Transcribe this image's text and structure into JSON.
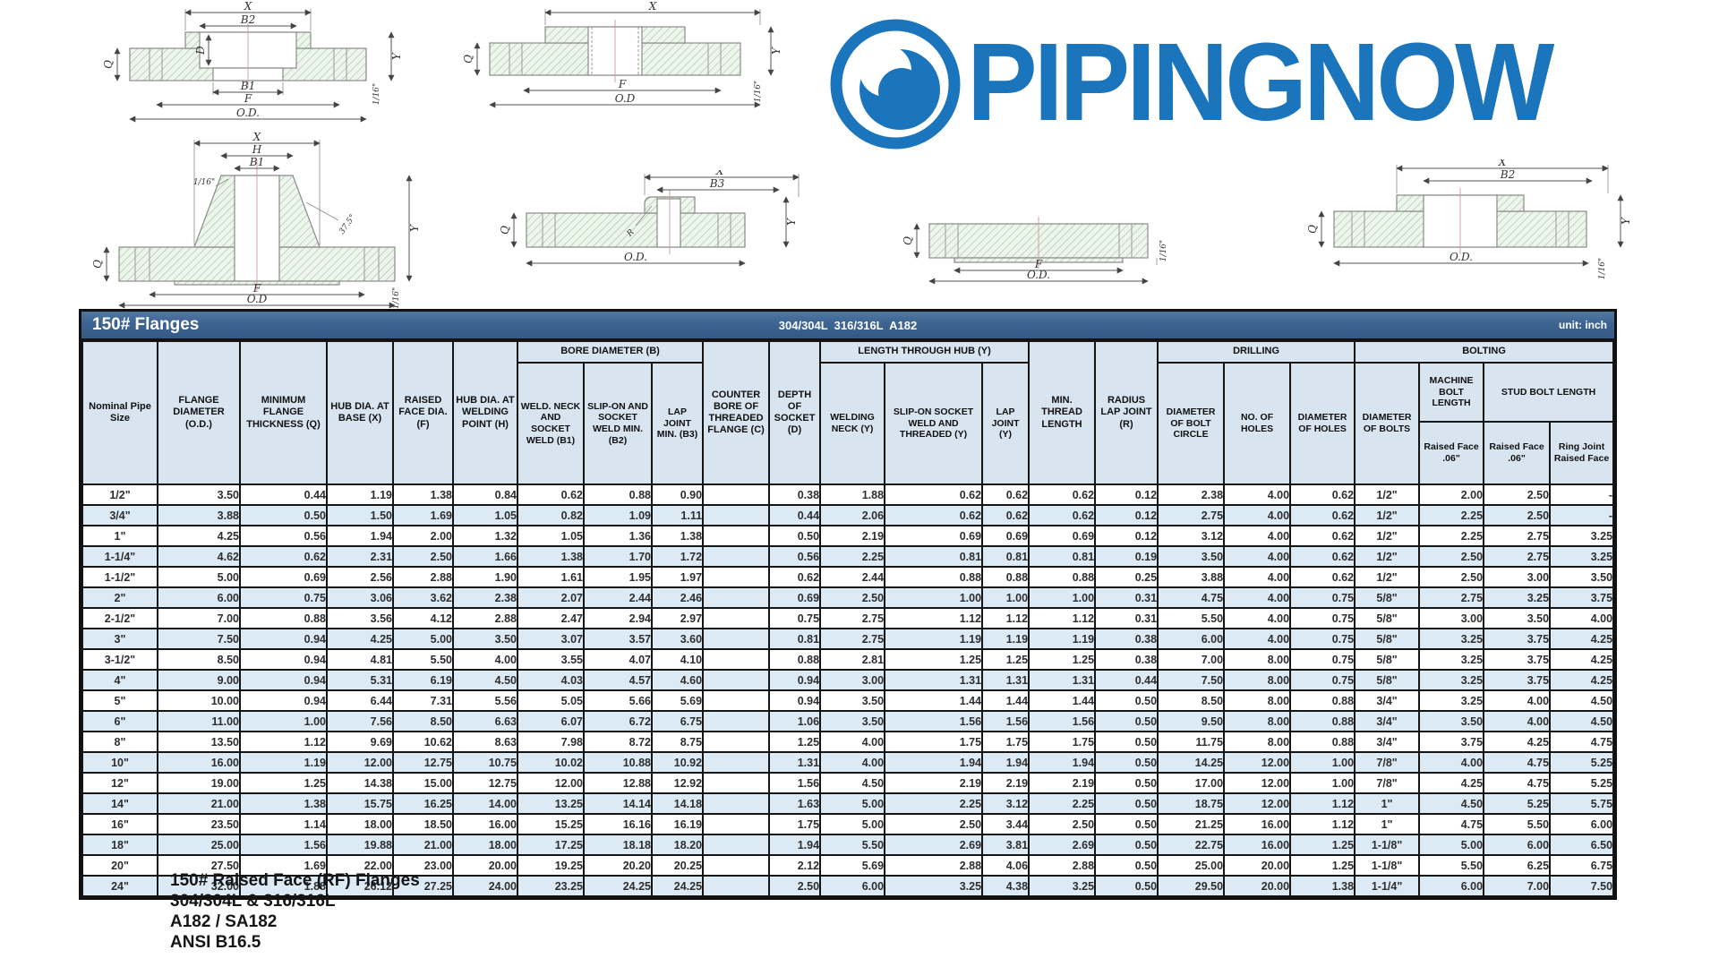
{
  "logo": {
    "text": "PIPINGNOW",
    "color": "#1b75bc"
  },
  "table": {
    "title": "150# Flanges",
    "subtitle": "304/304L  316/316L  A182",
    "unit": "unit: inch",
    "header": {
      "nominal": "Nominal Pipe Size",
      "od": "FLANGE DIAMETER (O.D.)",
      "q": "MINIMUM FLANGE THICKNESS (Q)",
      "x": "HUB DIA. AT BASE (X)",
      "f": "RAISED FACE DIA. (F)",
      "h": "HUB DIA. AT WELDING POINT (H)",
      "group_bore": "BORE DIAMETER (B)",
      "b1": "WELD. NECK AND SOCKET WELD (B1)",
      "b2": "SLIP-ON AND SOCKET WELD MIN. (B2)",
      "b3": "LAP JOINT MIN. (B3)",
      "c": "COUNTER BORE OF THREADED FLANGE (C)",
      "d": "DEPTH OF SOCKET (D)",
      "group_hub": "LENGTH THROUGH HUB (Y)",
      "wn": "WELDING NECK (Y)",
      "so": "SLIP-ON SOCKET WELD AND THREADED (Y)",
      "lj": "LAP JOINT (Y)",
      "thread": "MIN. THREAD LENGTH",
      "r": "RADIUS LAP JOINT (R)",
      "group_drilling": "DRILLING",
      "bolt_circle": "DIAMETER OF BOLT CIRCLE",
      "no_holes": "NO. OF HOLES",
      "hole_dia": "DIAMETER OF HOLES",
      "group_bolting": "BOLTING",
      "bolt_dia": "DIAMETER OF BOLTS",
      "machine_bolt": "MACHINE BOLT LENGTH",
      "stud_bolt": "STUD BOLT LENGTH",
      "machine_rf": "Raised Face .06\"",
      "stud_rf": "Raised Face .06\"",
      "ring_joint": "Ring Joint Raised Face"
    },
    "rows": [
      [
        "1/2\"",
        "3.50",
        "0.44",
        "1.19",
        "1.38",
        "0.84",
        "0.62",
        "0.88",
        "0.90",
        "",
        "0.38",
        "1.88",
        "0.62",
        "0.62",
        "0.62",
        "0.12",
        "2.38",
        "4.00",
        "0.62",
        "1/2\"",
        "2.00",
        "2.50",
        "-"
      ],
      [
        "3/4\"",
        "3.88",
        "0.50",
        "1.50",
        "1.69",
        "1.05",
        "0.82",
        "1.09",
        "1.11",
        "",
        "0.44",
        "2.06",
        "0.62",
        "0.62",
        "0.62",
        "0.12",
        "2.75",
        "4.00",
        "0.62",
        "1/2\"",
        "2.25",
        "2.50",
        "-"
      ],
      [
        "1\"",
        "4.25",
        "0.56",
        "1.94",
        "2.00",
        "1.32",
        "1.05",
        "1.36",
        "1.38",
        "",
        "0.50",
        "2.19",
        "0.69",
        "0.69",
        "0.69",
        "0.12",
        "3.12",
        "4.00",
        "0.62",
        "1/2\"",
        "2.25",
        "2.75",
        "3.25"
      ],
      [
        "1-1/4\"",
        "4.62",
        "0.62",
        "2.31",
        "2.50",
        "1.66",
        "1.38",
        "1.70",
        "1.72",
        "",
        "0.56",
        "2.25",
        "0.81",
        "0.81",
        "0.81",
        "0.19",
        "3.50",
        "4.00",
        "0.62",
        "1/2\"",
        "2.50",
        "2.75",
        "3.25"
      ],
      [
        "1-1/2\"",
        "5.00",
        "0.69",
        "2.56",
        "2.88",
        "1.90",
        "1.61",
        "1.95",
        "1.97",
        "",
        "0.62",
        "2.44",
        "0.88",
        "0.88",
        "0.88",
        "0.25",
        "3.88",
        "4.00",
        "0.62",
        "1/2\"",
        "2.50",
        "3.00",
        "3.50"
      ],
      [
        "2\"",
        "6.00",
        "0.75",
        "3.06",
        "3.62",
        "2.38",
        "2.07",
        "2.44",
        "2.46",
        "",
        "0.69",
        "2.50",
        "1.00",
        "1.00",
        "1.00",
        "0.31",
        "4.75",
        "4.00",
        "0.75",
        "5/8\"",
        "2.75",
        "3.25",
        "3.75"
      ],
      [
        "2-1/2\"",
        "7.00",
        "0.88",
        "3.56",
        "4.12",
        "2.88",
        "2.47",
        "2.94",
        "2.97",
        "",
        "0.75",
        "2.75",
        "1.12",
        "1.12",
        "1.12",
        "0.31",
        "5.50",
        "4.00",
        "0.75",
        "5/8\"",
        "3.00",
        "3.50",
        "4.00"
      ],
      [
        "3\"",
        "7.50",
        "0.94",
        "4.25",
        "5.00",
        "3.50",
        "3.07",
        "3.57",
        "3.60",
        "",
        "0.81",
        "2.75",
        "1.19",
        "1.19",
        "1.19",
        "0.38",
        "6.00",
        "4.00",
        "0.75",
        "5/8\"",
        "3.25",
        "3.75",
        "4.25"
      ],
      [
        "3-1/2\"",
        "8.50",
        "0.94",
        "4.81",
        "5.50",
        "4.00",
        "3.55",
        "4.07",
        "4.10",
        "",
        "0.88",
        "2.81",
        "1.25",
        "1.25",
        "1.25",
        "0.38",
        "7.00",
        "8.00",
        "0.75",
        "5/8\"",
        "3.25",
        "3.75",
        "4.25"
      ],
      [
        "4\"",
        "9.00",
        "0.94",
        "5.31",
        "6.19",
        "4.50",
        "4.03",
        "4.57",
        "4.60",
        "",
        "0.94",
        "3.00",
        "1.31",
        "1.31",
        "1.31",
        "0.44",
        "7.50",
        "8.00",
        "0.75",
        "5/8\"",
        "3.25",
        "3.75",
        "4.25"
      ],
      [
        "5\"",
        "10.00",
        "0.94",
        "6.44",
        "7.31",
        "5.56",
        "5.05",
        "5.66",
        "5.69",
        "",
        "0.94",
        "3.50",
        "1.44",
        "1.44",
        "1.44",
        "0.50",
        "8.50",
        "8.00",
        "0.88",
        "3/4\"",
        "3.25",
        "4.00",
        "4.50"
      ],
      [
        "6\"",
        "11.00",
        "1.00",
        "7.56",
        "8.50",
        "6.63",
        "6.07",
        "6.72",
        "6.75",
        "",
        "1.06",
        "3.50",
        "1.56",
        "1.56",
        "1.56",
        "0.50",
        "9.50",
        "8.00",
        "0.88",
        "3/4\"",
        "3.50",
        "4.00",
        "4.50"
      ],
      [
        "8\"",
        "13.50",
        "1.12",
        "9.69",
        "10.62",
        "8.63",
        "7.98",
        "8.72",
        "8.75",
        "",
        "1.25",
        "4.00",
        "1.75",
        "1.75",
        "1.75",
        "0.50",
        "11.75",
        "8.00",
        "0.88",
        "3/4\"",
        "3.75",
        "4.25",
        "4.75"
      ],
      [
        "10\"",
        "16.00",
        "1.19",
        "12.00",
        "12.75",
        "10.75",
        "10.02",
        "10.88",
        "10.92",
        "",
        "1.31",
        "4.00",
        "1.94",
        "1.94",
        "1.94",
        "0.50",
        "14.25",
        "12.00",
        "1.00",
        "7/8\"",
        "4.00",
        "4.75",
        "5.25"
      ],
      [
        "12\"",
        "19.00",
        "1.25",
        "14.38",
        "15.00",
        "12.75",
        "12.00",
        "12.88",
        "12.92",
        "",
        "1.56",
        "4.50",
        "2.19",
        "2.19",
        "2.19",
        "0.50",
        "17.00",
        "12.00",
        "1.00",
        "7/8\"",
        "4.25",
        "4.75",
        "5.25"
      ],
      [
        "14\"",
        "21.00",
        "1.38",
        "15.75",
        "16.25",
        "14.00",
        "13.25",
        "14.14",
        "14.18",
        "",
        "1.63",
        "5.00",
        "2.25",
        "3.12",
        "2.25",
        "0.50",
        "18.75",
        "12.00",
        "1.12",
        "1\"",
        "4.50",
        "5.25",
        "5.75"
      ],
      [
        "16\"",
        "23.50",
        "1.14",
        "18.00",
        "18.50",
        "16.00",
        "15.25",
        "16.16",
        "16.19",
        "",
        "1.75",
        "5.00",
        "2.50",
        "3.44",
        "2.50",
        "0.50",
        "21.25",
        "16.00",
        "1.12",
        "1\"",
        "4.75",
        "5.50",
        "6.00"
      ],
      [
        "18\"",
        "25.00",
        "1.56",
        "19.88",
        "21.00",
        "18.00",
        "17.25",
        "18.18",
        "18.20",
        "",
        "1.94",
        "5.50",
        "2.69",
        "3.81",
        "2.69",
        "0.50",
        "22.75",
        "16.00",
        "1.25",
        "1-1/8\"",
        "5.00",
        "6.00",
        "6.50"
      ],
      [
        "20\"",
        "27.50",
        "1.69",
        "22.00",
        "23.00",
        "20.00",
        "19.25",
        "20.20",
        "20.25",
        "",
        "2.12",
        "5.69",
        "2.88",
        "4.06",
        "2.88",
        "0.50",
        "25.00",
        "20.00",
        "1.25",
        "1-1/8\"",
        "5.50",
        "6.25",
        "6.75"
      ],
      [
        "24\"",
        "32.00",
        "1.88",
        "26.12",
        "27.25",
        "24.00",
        "23.25",
        "24.25",
        "24.25",
        "",
        "2.50",
        "6.00",
        "3.25",
        "4.38",
        "3.25",
        "0.50",
        "29.50",
        "20.00",
        "1.38",
        "1-1/4\"",
        "6.00",
        "7.00",
        "7.50"
      ]
    ]
  },
  "drawings": {
    "socket_weld": {
      "labels": [
        "X",
        "B2",
        "D",
        "Q",
        "B1",
        "F",
        "O.D.",
        "Y",
        "1/16\""
      ]
    },
    "threaded": {
      "labels": [
        "X",
        "Q",
        "F",
        "O.D",
        "Y",
        "1/16\""
      ]
    },
    "weld_neck": {
      "labels": [
        "X",
        "H",
        "B1",
        "1/16\"",
        "37.5°",
        "Q",
        "F",
        "O.D",
        "Y",
        "1/16\""
      ]
    },
    "lap_joint": {
      "labels": [
        "X",
        "B3",
        "R",
        "Q",
        "O.D.",
        "Y"
      ]
    },
    "blind": {
      "labels": [
        "Q",
        "F",
        "O.D.",
        "1/16\""
      ]
    },
    "slip_on": {
      "labels": [
        "X",
        "B2",
        "Q",
        "O.D.",
        "Y",
        "1/16\""
      ]
    }
  },
  "footer": {
    "lines": [
      "150# Raised Face (RF) Flanges",
      "304/304L & 316/316L",
      "A182 / SA182",
      "ANSI B16.5"
    ]
  }
}
